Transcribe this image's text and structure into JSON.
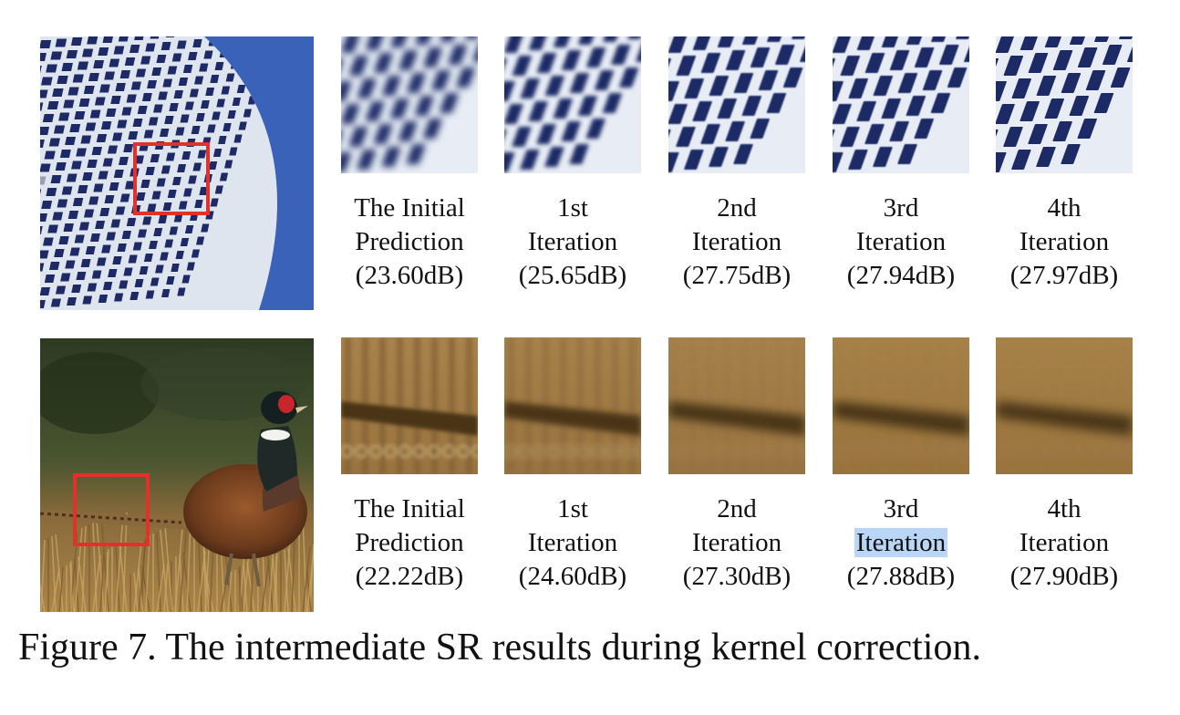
{
  "figure": {
    "caption": "Figure 7. The intermediate SR results during kernel correction."
  },
  "rows": [
    {
      "subject": "building",
      "highlight_color": "#e0312b",
      "steps": [
        {
          "line1": "The Initial",
          "line2": "Prediction",
          "line3": "(23.60dB)",
          "psnr_db": 23.6,
          "blur_level": 1.0
        },
        {
          "line1": "1st",
          "line2": "Iteration",
          "line3": "(25.65dB)",
          "psnr_db": 25.65,
          "blur_level": 0.6
        },
        {
          "line1": "2nd",
          "line2": "Iteration",
          "line3": "(27.75dB)",
          "psnr_db": 27.75,
          "blur_level": 0.2
        },
        {
          "line1": "3rd",
          "line2": "Iteration",
          "line3": "(27.94dB)",
          "psnr_db": 27.94,
          "blur_level": 0.1
        },
        {
          "line1": "4th",
          "line2": "Iteration",
          "line3": "(27.97dB)",
          "psnr_db": 27.97,
          "blur_level": 0.05
        }
      ]
    },
    {
      "subject": "pheasant",
      "highlight_color": "#e0312b",
      "steps": [
        {
          "line1": "The Initial",
          "line2": "Prediction",
          "line3": "(22.22dB)",
          "psnr_db": 22.22,
          "blur_level": 0.2
        },
        {
          "line1": "1st",
          "line2": "Iteration",
          "line3": "(24.60dB)",
          "psnr_db": 24.6,
          "blur_level": 0.5
        },
        {
          "line1": "2nd",
          "line2": "Iteration",
          "line3": "(27.30dB)",
          "psnr_db": 27.3,
          "blur_level": 0.8
        },
        {
          "line1": "3rd",
          "line2": "Iteration",
          "line3": "(27.88dB)",
          "psnr_db": 27.88,
          "blur_level": 0.9
        },
        {
          "line1": "4th",
          "line2": "Iteration",
          "line3": "(27.90dB)",
          "psnr_db": 27.9,
          "blur_level": 0.95
        }
      ]
    }
  ],
  "colors": {
    "sky": "#3a62b8",
    "window": "#1d2a66",
    "frame": "#e8edf5",
    "foliage": "#3b4a2a",
    "grass": "#a07a42",
    "selection": "#b9d6f7"
  }
}
